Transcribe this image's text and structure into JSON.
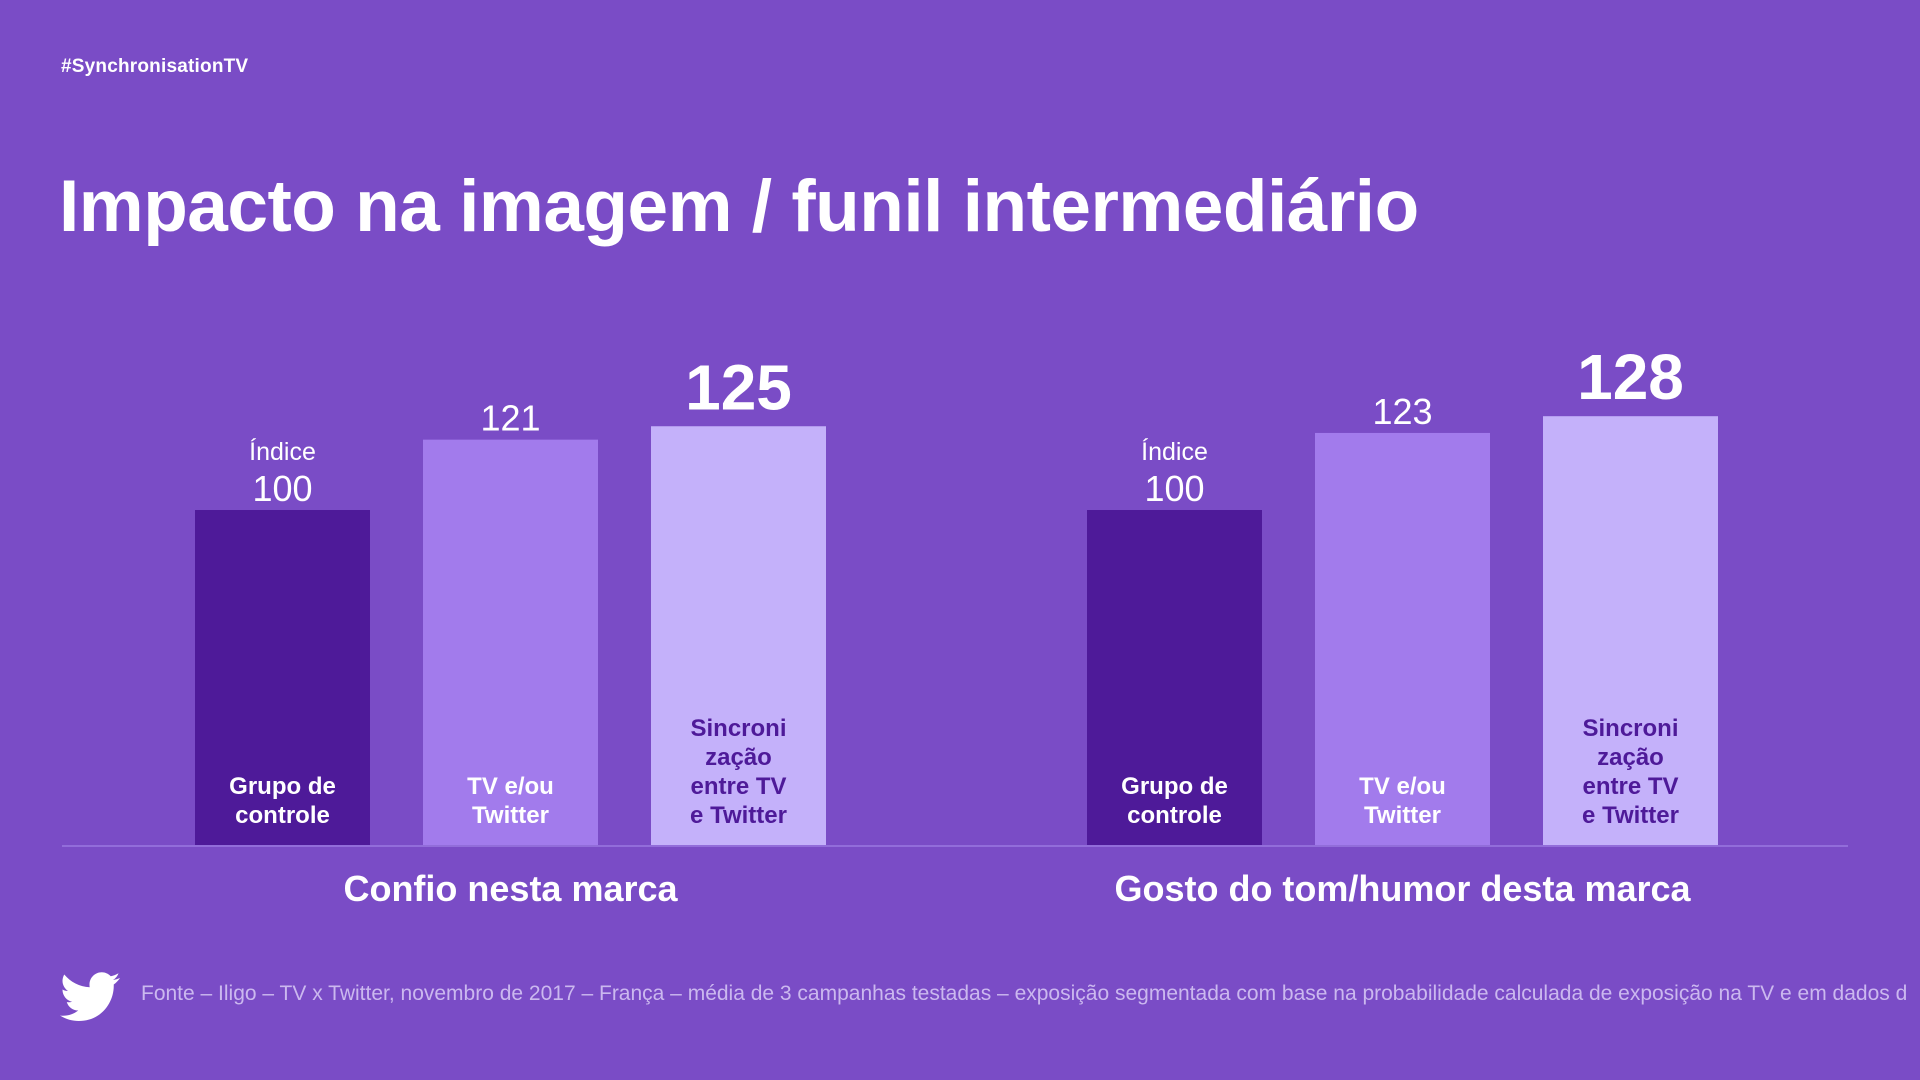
{
  "header": {
    "hashtag": "#SynchronisationTV",
    "title": "Impacto na imagem / funil intermediário"
  },
  "footer": {
    "logo_icon": "twitter-bird-icon",
    "source": "Fonte – Iligo – TV x Twitter, novembro de 2017 – França – média de 3 campanhas testadas – exposição segmentada com base na probabilidade calculada de exposição na TV e em dados d"
  },
  "colors": {
    "background": "#7a4cc6",
    "bar_control": "#4e1a99",
    "bar_tv_twitter": "#a27bec",
    "bar_sync": "#c4b1fa",
    "sync_label": "#4e1a99",
    "axis_line": "#9a78e0"
  },
  "chart_data": [
    {
      "type": "bar",
      "title": "Confio nesta marca",
      "categories": [
        "Grupo de controle",
        "TV e/ou Twitter",
        "Sincronização entre TV e Twitter"
      ],
      "category_lines": [
        [
          "Grupo de",
          "controle"
        ],
        [
          "TV e/ou",
          "Twitter"
        ],
        [
          "Sincroni",
          "zação",
          "entre TV",
          "e Twitter"
        ]
      ],
      "values": [
        100,
        121,
        125
      ],
      "value_labels": [
        "100",
        "121",
        "125"
      ],
      "value_prefix": [
        "Índice",
        "",
        ""
      ],
      "ylim": [
        0,
        125
      ]
    },
    {
      "type": "bar",
      "title": "Gosto do tom/humor desta marca",
      "categories": [
        "Grupo de controle",
        "TV e/ou Twitter",
        "Sincronização entre TV e Twitter"
      ],
      "category_lines": [
        [
          "Grupo de",
          "controle"
        ],
        [
          "TV e/ou",
          "Twitter"
        ],
        [
          "Sincroni",
          "zação",
          "entre TV",
          "e Twitter"
        ]
      ],
      "values": [
        100,
        123,
        128
      ],
      "value_labels": [
        "100",
        "123",
        "128"
      ],
      "value_prefix": [
        "Índice",
        "",
        ""
      ],
      "ylim": [
        0,
        128
      ]
    }
  ]
}
